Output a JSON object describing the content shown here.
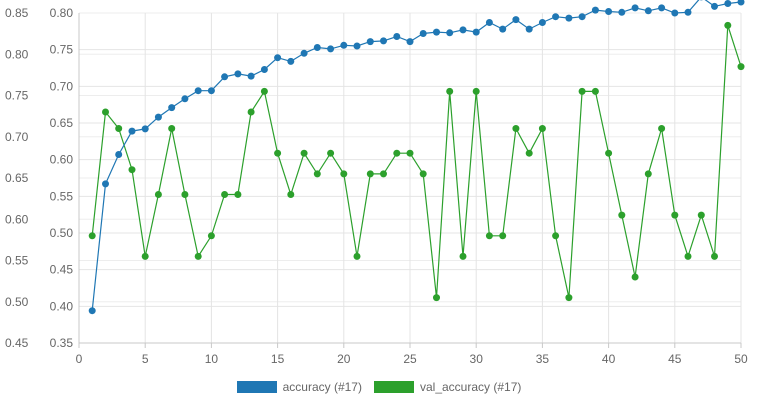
{
  "chart_data": {
    "type": "line",
    "x": [
      1,
      2,
      3,
      4,
      5,
      6,
      7,
      8,
      9,
      10,
      11,
      12,
      13,
      14,
      15,
      16,
      17,
      18,
      19,
      20,
      21,
      22,
      23,
      24,
      25,
      26,
      27,
      28,
      29,
      30,
      31,
      32,
      33,
      34,
      35,
      36,
      37,
      38,
      39,
      40,
      41,
      42,
      43,
      44,
      45,
      46,
      47,
      48,
      49,
      50
    ],
    "x_ticks": [
      "0",
      "5",
      "10",
      "15",
      "20",
      "25",
      "30",
      "35",
      "40",
      "45",
      "50"
    ],
    "xlim": [
      0,
      50
    ],
    "left_axis_ticks": [
      "0.80",
      "0.75",
      "0.70",
      "0.65",
      "0.60",
      "0.55",
      "0.50",
      "0.45",
      "0.40",
      "0.35"
    ],
    "left_ylim": [
      0.35,
      0.8
    ],
    "right_axis_ticks": [
      "0.85",
      "0.80",
      "0.75",
      "0.70",
      "0.65",
      "0.60",
      "0.55",
      "0.50",
      "0.45"
    ],
    "right_ylim": [
      0.45,
      0.85
    ],
    "grid": true,
    "legend_position": "bottom",
    "series": [
      {
        "name": "accuracy (#17)",
        "axis": "left",
        "color": "#1f77b4",
        "values": [
          0.394,
          0.567,
          0.607,
          0.639,
          0.642,
          0.658,
          0.671,
          0.683,
          0.694,
          0.694,
          0.713,
          0.717,
          0.714,
          0.723,
          0.739,
          0.734,
          0.745,
          0.753,
          0.751,
          0.756,
          0.755,
          0.761,
          0.762,
          0.768,
          0.761,
          0.772,
          0.774,
          0.773,
          0.777,
          0.774,
          0.787,
          0.778,
          0.791,
          0.778,
          0.787,
          0.795,
          0.793,
          0.795,
          0.804,
          0.802,
          0.801,
          0.807,
          0.803,
          0.807,
          0.8,
          0.801,
          0.822,
          0.809,
          0.813,
          0.815
        ]
      },
      {
        "name": "val_accuracy (#17)",
        "axis": "right",
        "color": "#2ca02c",
        "values": [
          0.58,
          0.73,
          0.71,
          0.66,
          0.555,
          0.63,
          0.71,
          0.63,
          0.555,
          0.58,
          0.63,
          0.63,
          0.73,
          0.755,
          0.68,
          0.63,
          0.68,
          0.655,
          0.68,
          0.655,
          0.555,
          0.655,
          0.655,
          0.68,
          0.68,
          0.655,
          0.505,
          0.755,
          0.555,
          0.755,
          0.58,
          0.58,
          0.71,
          0.68,
          0.71,
          0.58,
          0.505,
          0.755,
          0.755,
          0.68,
          0.605,
          0.53,
          0.655,
          0.71,
          0.605,
          0.555,
          0.605,
          0.555,
          0.835,
          0.785
        ]
      }
    ]
  }
}
